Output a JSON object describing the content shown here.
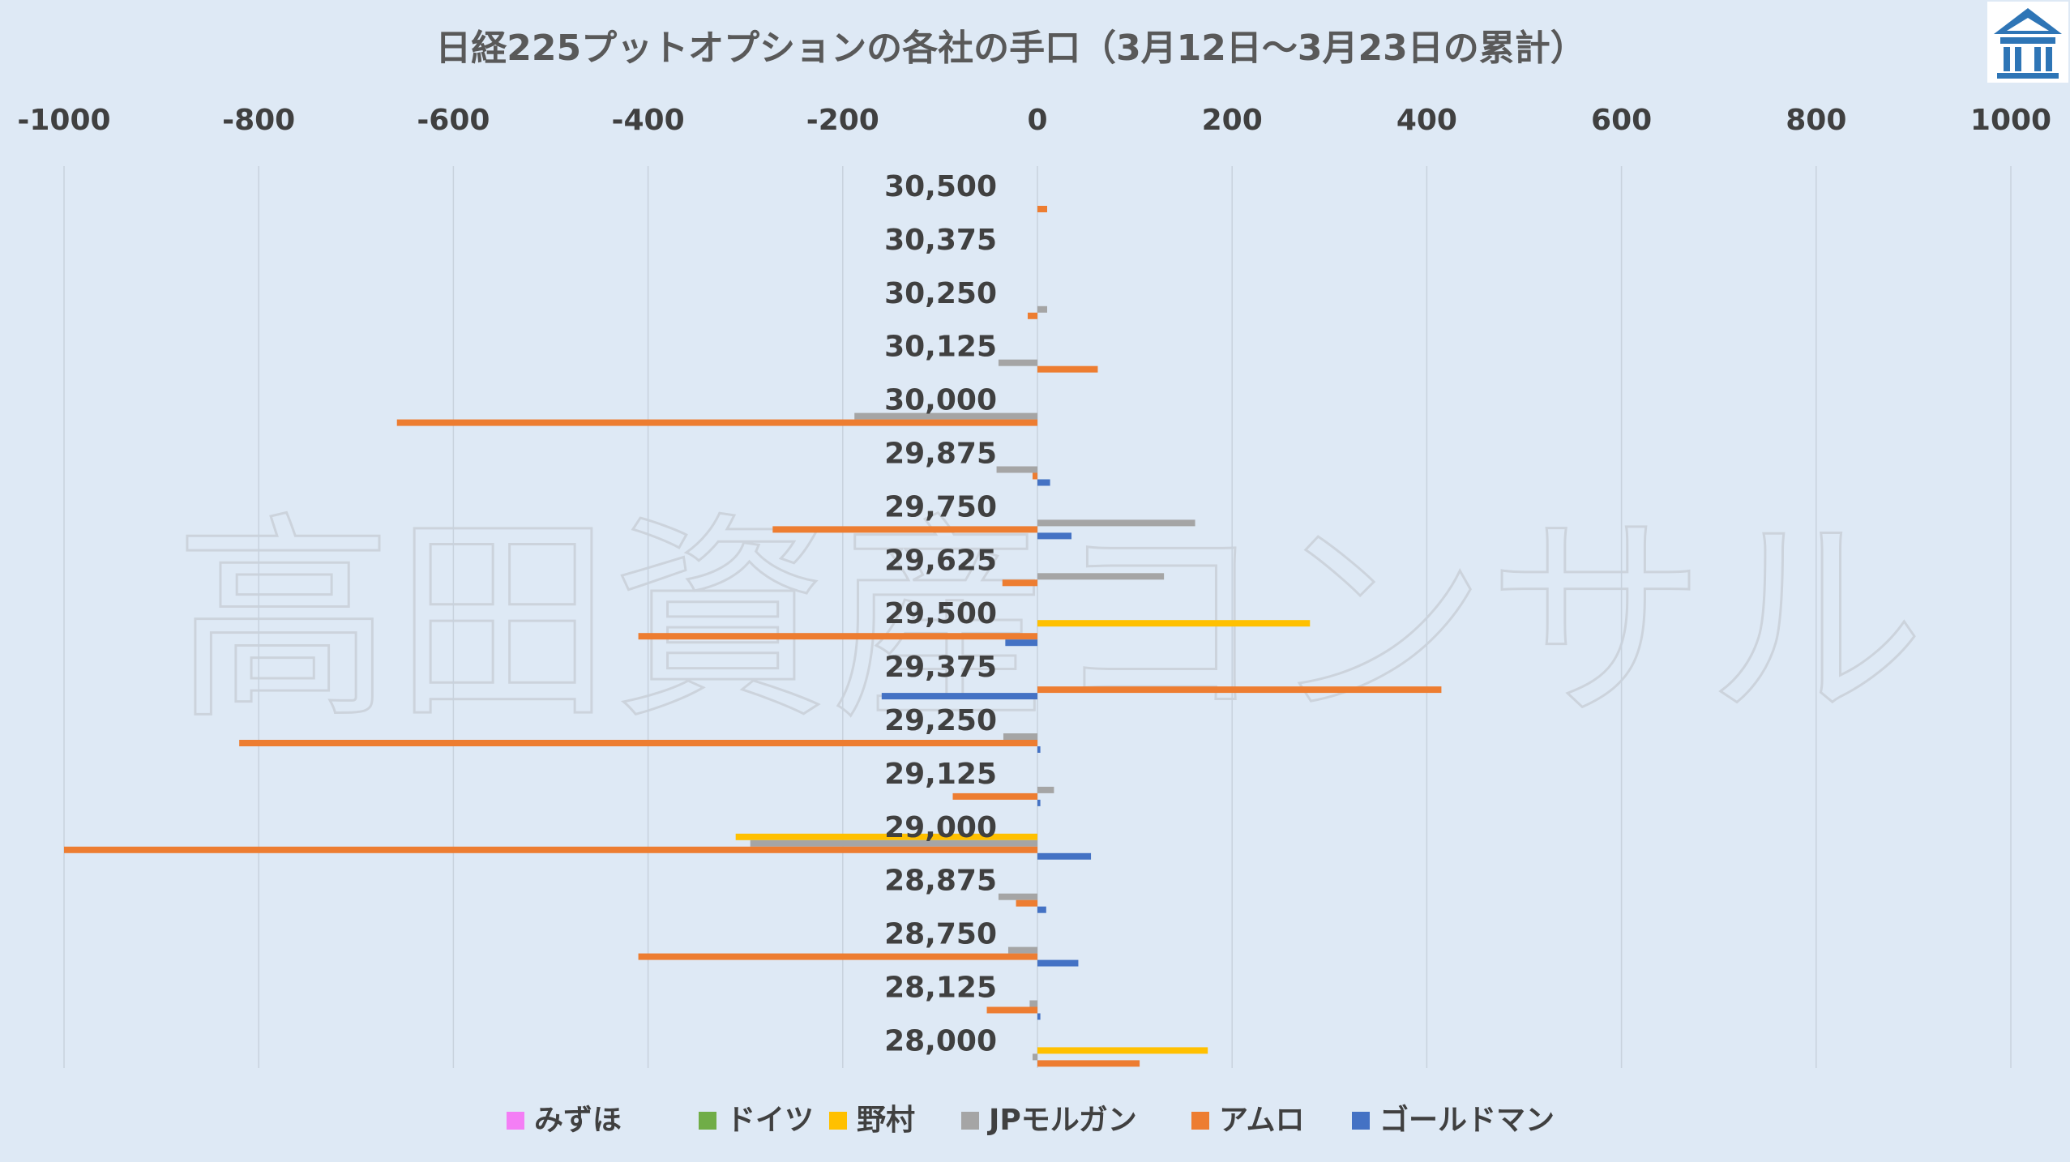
{
  "chart_data": {
    "type": "bar",
    "orientation": "horizontal",
    "title": "日経225プットオプションの各社の手口（3月12日～3月23日の累計）",
    "xlim": [
      -1000,
      1000
    ],
    "x_ticks": [
      "-1000",
      "-800",
      "-600",
      "-400",
      "-200",
      "0",
      "200",
      "400",
      "600",
      "800",
      "1000"
    ],
    "tick_values": [
      -1000,
      -800,
      -600,
      -400,
      -200,
      0,
      200,
      400,
      600,
      800,
      1000
    ],
    "grid": true,
    "legend_position": "bottom",
    "categories": [
      "30,500",
      "30,375",
      "30,250",
      "30,125",
      "30,000",
      "29,875",
      "29,750",
      "29,625",
      "29,500",
      "29,375",
      "29,250",
      "29,125",
      "29,000",
      "28,875",
      "28,750",
      "28,125",
      "28,000"
    ],
    "series": [
      {
        "name": "みずほ",
        "color": "#f47ef5",
        "values": [
          0,
          0,
          0,
          0,
          0,
          0,
          0,
          0,
          0,
          0,
          0,
          0,
          0,
          0,
          0,
          0,
          0
        ]
      },
      {
        "name": "ドイツ",
        "color": "#70ad47",
        "values": [
          0,
          0,
          0,
          0,
          0,
          0,
          0,
          0,
          0,
          0,
          0,
          0,
          0,
          0,
          0,
          0,
          0
        ]
      },
      {
        "name": "野村",
        "color": "#ffc000",
        "values": [
          0,
          0,
          0,
          0,
          0,
          0,
          0,
          0,
          280,
          0,
          0,
          0,
          -310,
          0,
          0,
          0,
          175
        ]
      },
      {
        "name": "JPモルガン",
        "color": "#a5a5a5",
        "values": [
          0,
          0,
          10,
          -40,
          -188,
          -42,
          162,
          130,
          0,
          0,
          -35,
          17,
          -295,
          -40,
          -30,
          -8,
          -5
        ]
      },
      {
        "name": "アムロ",
        "color": "#ed7d31",
        "values": [
          10,
          0,
          -10,
          62,
          -658,
          -5,
          -272,
          -36,
          -410,
          415,
          -820,
          -87,
          -1000,
          -22,
          -410,
          -52,
          105
        ]
      },
      {
        "name": "ゴールドマン",
        "color": "#4472c4",
        "values": [
          0,
          0,
          0,
          0,
          0,
          13,
          35,
          0,
          -33,
          -160,
          3,
          3,
          55,
          9,
          42,
          3,
          0
        ]
      }
    ]
  },
  "watermark": {
    "text": "高田資産コンサル"
  },
  "logo": {
    "icon": "building-logo-icon",
    "bg": "#ffffff",
    "color": "#2e75b6"
  }
}
